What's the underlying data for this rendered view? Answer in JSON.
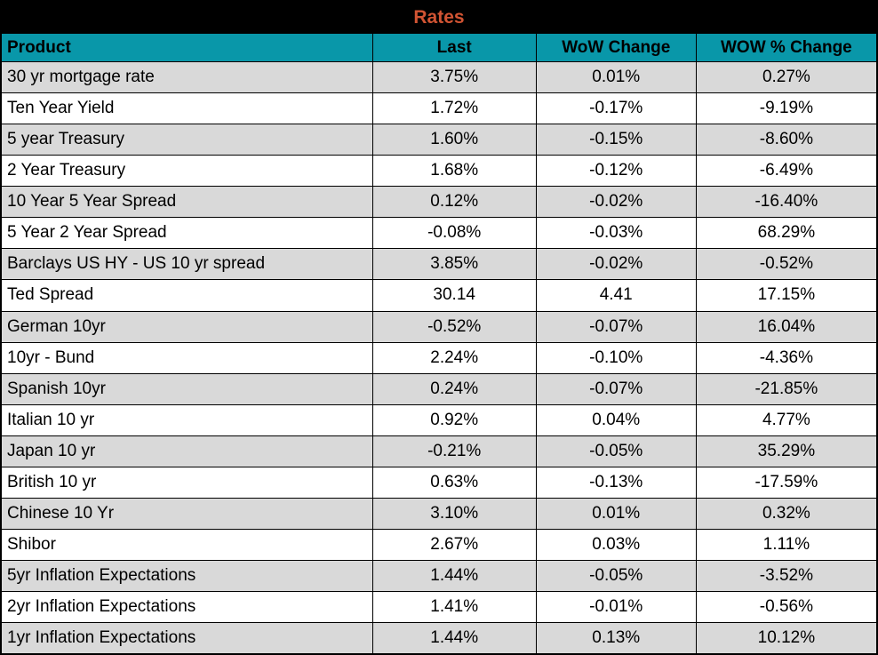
{
  "title": "Rates",
  "colors": {
    "title_bg": "#000000",
    "title_text": "#D15433",
    "header_bg": "#0997A9",
    "header_text": "#000000",
    "row_bg": "#FFFFFF",
    "row_alt_bg": "#D9D9D9",
    "border": "#000000"
  },
  "chart_data": {
    "type": "table",
    "title": "Rates",
    "columns": [
      "Product",
      "Last",
      "WoW Change",
      "WOW % Change"
    ],
    "rows": [
      [
        "30 yr mortgage rate",
        "3.75%",
        "0.01%",
        "0.27%"
      ],
      [
        "Ten Year Yield",
        "1.72%",
        "-0.17%",
        "-9.19%"
      ],
      [
        "5 year Treasury",
        "1.60%",
        "-0.15%",
        "-8.60%"
      ],
      [
        "2 Year Treasury",
        "1.68%",
        "-0.12%",
        "-6.49%"
      ],
      [
        "10 Year 5 Year Spread",
        "0.12%",
        "-0.02%",
        "-16.40%"
      ],
      [
        "5 Year 2 Year Spread",
        "-0.08%",
        "-0.03%",
        "68.29%"
      ],
      [
        "Barclays US HY - US 10 yr spread",
        "3.85%",
        "-0.02%",
        "-0.52%"
      ],
      [
        "Ted Spread",
        "30.14",
        "4.41",
        "17.15%"
      ],
      [
        "German 10yr",
        "-0.52%",
        "-0.07%",
        "16.04%"
      ],
      [
        "10yr - Bund",
        "2.24%",
        "-0.10%",
        "-4.36%"
      ],
      [
        "Spanish 10yr",
        "0.24%",
        "-0.07%",
        "-21.85%"
      ],
      [
        "Italian 10 yr",
        "0.92%",
        "0.04%",
        "4.77%"
      ],
      [
        "Japan 10 yr",
        "-0.21%",
        "-0.05%",
        "35.29%"
      ],
      [
        "British 10 yr",
        "0.63%",
        "-0.13%",
        "-17.59%"
      ],
      [
        "Chinese 10 Yr",
        "3.10%",
        "0.01%",
        "0.32%"
      ],
      [
        "Shibor",
        "2.67%",
        "0.03%",
        "1.11%"
      ],
      [
        "5yr Inflation Expectations",
        "1.44%",
        "-0.05%",
        "-3.52%"
      ],
      [
        "2yr Inflation Expectations",
        "1.41%",
        "-0.01%",
        "-0.56%"
      ],
      [
        "1yr Inflation Expectations",
        "1.44%",
        "0.13%",
        "10.12%"
      ]
    ]
  }
}
